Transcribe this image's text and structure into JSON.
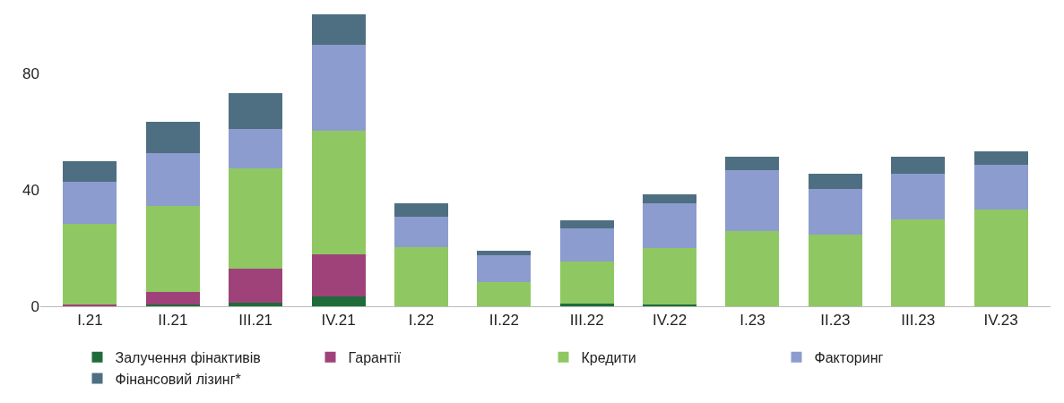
{
  "chart_data": {
    "type": "bar",
    "stacked": true,
    "categories": [
      "I.21",
      "II.21",
      "III.21",
      "IV.21",
      "I.22",
      "II.22",
      "III.22",
      "IV.22",
      "I.23",
      "II.23",
      "III.23",
      "IV.23"
    ],
    "series": [
      {
        "name": "Залучення фінактивів",
        "color": "#1f6b3a",
        "values": [
          0,
          0.5,
          1.1,
          3.4,
          0,
          0,
          1,
          0.5,
          0,
          0,
          0,
          0
        ]
      },
      {
        "name": "Гарантії",
        "color": "#a0427a",
        "values": [
          0.5,
          4.3,
          11.9,
          14.5,
          0,
          0,
          0,
          0,
          0,
          0,
          0,
          0
        ]
      },
      {
        "name": "Кредити",
        "color": "#8fc862",
        "values": [
          27.9,
          29.5,
          34.4,
          42.2,
          20.4,
          8.2,
          14.3,
          19.6,
          25.9,
          24.5,
          29.9,
          33.1
        ]
      },
      {
        "name": "Факторинг",
        "color": "#8c9ccf",
        "values": [
          14.2,
          18.2,
          13.3,
          29.5,
          10.2,
          9.4,
          11.4,
          15.2,
          20.7,
          15.6,
          15.7,
          15.5
        ]
      },
      {
        "name": "Фінансовий лізинг*",
        "color": "#4e6f82",
        "values": [
          7.3,
          10.8,
          12.5,
          10.5,
          4.6,
          1.4,
          2.8,
          3.0,
          4.6,
          5.3,
          5.6,
          4.6
        ]
      }
    ],
    "ylim": [
      0,
      102
    ],
    "yticks": [
      0,
      40,
      80
    ],
    "legend": "bottom"
  }
}
